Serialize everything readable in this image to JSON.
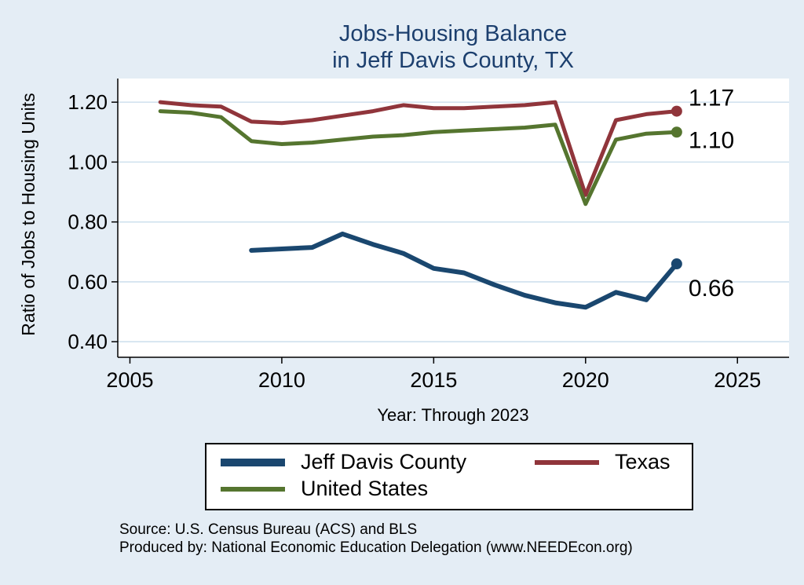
{
  "chart_data": {
    "type": "line",
    "title_line1": "Jobs-Housing Balance",
    "title_line2": "in Jeff Davis County, TX",
    "ylabel": "Ratio of Jobs to Housing Units",
    "xlabel": "Year: Through 2023",
    "xlim": [
      2004.6,
      2026.7
    ],
    "ylim": [
      0.348,
      1.279
    ],
    "xticks": [
      2005,
      2010,
      2015,
      2020,
      2025
    ],
    "ytick_labels": [
      "0.40",
      "0.60",
      "0.80",
      "1.00",
      "1.20"
    ],
    "ytick_values": [
      0.4,
      0.6,
      0.8,
      1.0,
      1.2
    ],
    "grid": "horizontal",
    "legend_position": "bottom",
    "series": [
      {
        "name": "Jeff Davis County",
        "color": "#1a476f",
        "end_label": "0.66",
        "x": [
          2009,
          2010,
          2011,
          2012,
          2013,
          2014,
          2015,
          2016,
          2017,
          2018,
          2019,
          2020,
          2021,
          2022,
          2023
        ],
        "values": [
          0.705,
          0.71,
          0.715,
          0.76,
          0.725,
          0.695,
          0.645,
          0.63,
          0.59,
          0.555,
          0.53,
          0.515,
          0.565,
          0.54,
          0.66
        ]
      },
      {
        "name": "Texas",
        "color": "#90353b",
        "end_label": "1.17",
        "x": [
          2006,
          2007,
          2008,
          2009,
          2010,
          2011,
          2012,
          2013,
          2014,
          2015,
          2016,
          2017,
          2018,
          2019,
          2020,
          2021,
          2022,
          2023
        ],
        "values": [
          1.2,
          1.19,
          1.185,
          1.135,
          1.13,
          1.14,
          1.155,
          1.17,
          1.19,
          1.18,
          1.18,
          1.185,
          1.19,
          1.2,
          0.89,
          1.14,
          1.16,
          1.17
        ]
      },
      {
        "name": "United States",
        "color": "#55752f",
        "end_label": "1.10",
        "x": [
          2006,
          2007,
          2008,
          2009,
          2010,
          2011,
          2012,
          2013,
          2014,
          2015,
          2016,
          2017,
          2018,
          2019,
          2020,
          2021,
          2022,
          2023
        ],
        "values": [
          1.17,
          1.165,
          1.15,
          1.07,
          1.06,
          1.065,
          1.075,
          1.085,
          1.09,
          1.1,
          1.105,
          1.11,
          1.115,
          1.125,
          0.86,
          1.075,
          1.095,
          1.1
        ]
      }
    ]
  },
  "notes": {
    "source": "Source: U.S. Census Bureau (ACS) and BLS",
    "produced_by": "Produced by: National Economic Education Delegation (www.NEEDEcon.org)"
  },
  "colors": {
    "background": "#e4edf5",
    "plot_bg": "#ffffff",
    "grid": "#cfe1ee",
    "axis": "#000000",
    "title": "#1c3f6e"
  }
}
